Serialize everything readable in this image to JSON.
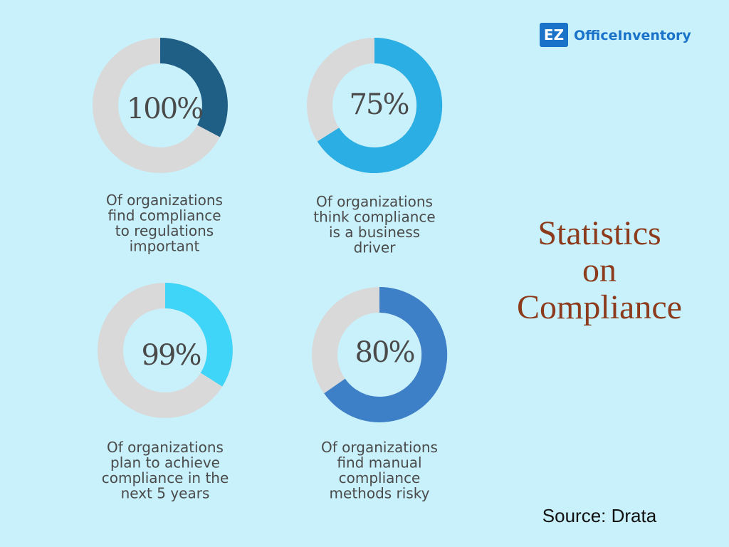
{
  "logo": {
    "mark": "EZ",
    "name": "OfficeInventory"
  },
  "title": [
    "Statistics",
    "on",
    "Compliance"
  ],
  "stats": [
    {
      "value": "100%",
      "caption": [
        "Of organizations",
        "find compliance",
        "to regulations",
        "important"
      ]
    },
    {
      "value": "75%",
      "caption": [
        "Of organizations",
        "think compliance",
        "is a business",
        "driver"
      ]
    },
    {
      "value": "99%",
      "caption": [
        "Of organizations",
        "plan to achieve",
        "compliance in the",
        "next 5 years"
      ]
    },
    {
      "value": "80%",
      "caption": [
        "Of organizations",
        "find manual",
        "compliance",
        "methods risky"
      ]
    }
  ],
  "source": "Source: Drata"
}
